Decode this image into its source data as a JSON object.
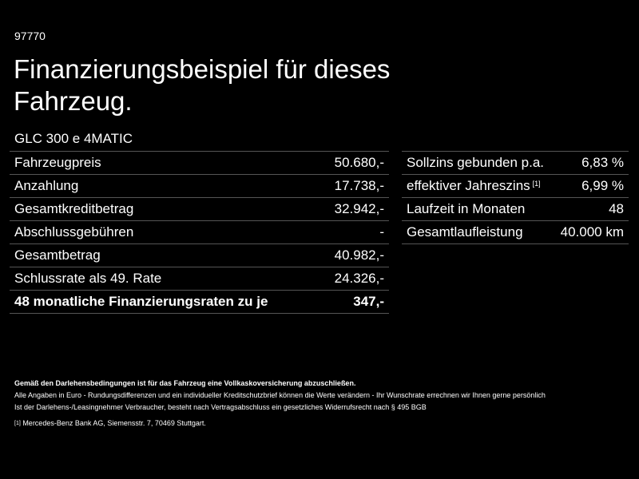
{
  "header": {
    "id": "97770",
    "title_lines": [
      "Finanzierungsbeispiel für dieses",
      "Fahrzeug."
    ],
    "model": "GLC 300 e 4MATIC"
  },
  "left_table": {
    "rows": [
      {
        "label": "Fahrzeugpreis",
        "value": "50.680,-"
      },
      {
        "label": "Anzahlung",
        "value": "17.738,-"
      },
      {
        "label": "Gesamtkreditbetrag",
        "value": "32.942,-"
      },
      {
        "label": "Abschlussgebühren",
        "value": "-"
      },
      {
        "label": "Gesamtbetrag",
        "value": "40.982,-"
      },
      {
        "label": "Schlussrate als 49. Rate",
        "value": "24.326,-"
      },
      {
        "label": "48 monatliche Finanzierungsraten zu je",
        "value": "347,-",
        "bold": true
      }
    ]
  },
  "right_table": {
    "rows": [
      {
        "label": "Sollzins gebunden p.a.",
        "value": "6,83 %"
      },
      {
        "label": "effektiver Jahreszins",
        "note": "[1]",
        "value": "6,99 %"
      },
      {
        "label": "Laufzeit in Monaten",
        "value": "48"
      },
      {
        "label": "Gesamtlaufleistung",
        "value": "40.000 km"
      }
    ]
  },
  "footer": {
    "notice": "Gemäß den Darlehensbedingungen ist für das Fahrzeug eine Vollkaskoversicherung abzuschließen.",
    "disclaimer": [
      "Alle Angaben in Euro - Rundungsdifferenzen und ein individueller Kreditschutzbrief können die Werte verändern - Ihr Wunschrate errechnen wir Ihnen gerne persönlich",
      "Ist der Darlehens-/Leasingnehmer Verbraucher, besteht nach Vertragsabschluss ein gesetzliches Widerrufsrecht nach § 495 BGB"
    ],
    "footnote": {
      "mark": "[1]",
      "text": "Mercedes-Benz Bank AG, Siemensstr. 7, 70469 Stuttgart."
    }
  }
}
